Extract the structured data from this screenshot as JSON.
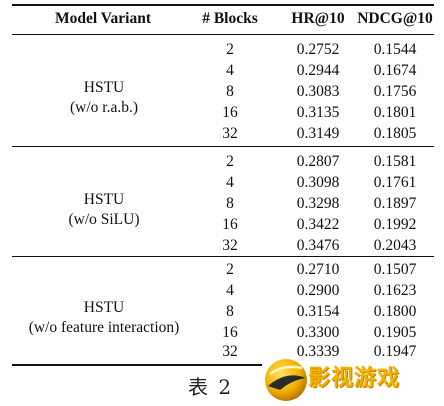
{
  "table": {
    "headers": {
      "variant": "Model Variant",
      "blocks": "# Blocks",
      "hr": "HR@10",
      "ndcg": "NDCG@10"
    },
    "groups": [
      {
        "label_line1": "HSTU",
        "label_line2": "(w/o r.a.b.)",
        "rows": [
          {
            "blocks": "2",
            "hr": "0.2752",
            "ndcg": "0.1544"
          },
          {
            "blocks": "4",
            "hr": "0.2944",
            "ndcg": "0.1674"
          },
          {
            "blocks": "8",
            "hr": "0.3083",
            "ndcg": "0.1756"
          },
          {
            "blocks": "16",
            "hr": "0.3135",
            "ndcg": "0.1801"
          },
          {
            "blocks": "32",
            "hr": "0.3149",
            "ndcg": "0.1805"
          }
        ]
      },
      {
        "label_line1": "HSTU",
        "label_line2": "(w/o SiLU)",
        "rows": [
          {
            "blocks": "2",
            "hr": "0.2807",
            "ndcg": "0.1581"
          },
          {
            "blocks": "4",
            "hr": "0.3098",
            "ndcg": "0.1761"
          },
          {
            "blocks": "8",
            "hr": "0.3298",
            "ndcg": "0.1897"
          },
          {
            "blocks": "16",
            "hr": "0.3422",
            "ndcg": "0.1992"
          },
          {
            "blocks": "32",
            "hr": "0.3476",
            "ndcg": "0.2043"
          }
        ]
      },
      {
        "label_line1": "HSTU",
        "label_line2": "(w/o feature interaction)",
        "rows": [
          {
            "blocks": "2",
            "hr": "0.2710",
            "ndcg": "0.1507"
          },
          {
            "blocks": "4",
            "hr": "0.2900",
            "ndcg": "0.1623"
          },
          {
            "blocks": "8",
            "hr": "0.3154",
            "ndcg": "0.1800"
          },
          {
            "blocks": "16",
            "hr": "0.3300",
            "ndcg": "0.1905"
          },
          {
            "blocks": "32",
            "hr": "0.3339",
            "ndcg": "0.1947"
          }
        ]
      }
    ]
  },
  "caption": "表 2",
  "watermark": {
    "text": "影视游戏",
    "colors": {
      "fill": "#f0b400",
      "shadow": "#c77d00",
      "logo_dark": "#2a2a2a"
    }
  }
}
